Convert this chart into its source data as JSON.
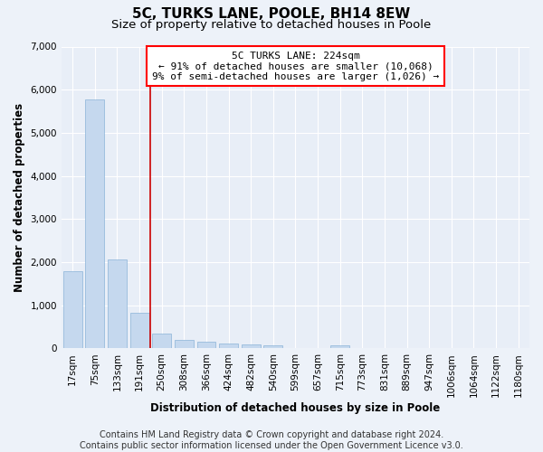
{
  "title": "5C, TURKS LANE, POOLE, BH14 8EW",
  "subtitle": "Size of property relative to detached houses in Poole",
  "xlabel": "Distribution of detached houses by size in Poole",
  "ylabel": "Number of detached properties",
  "bar_color": "#c5d8ee",
  "bar_edge_color": "#8ab4d8",
  "marker_line_index": 3,
  "marker_line_color": "#cc0000",
  "categories": [
    "17sqm",
    "75sqm",
    "133sqm",
    "191sqm",
    "250sqm",
    "308sqm",
    "366sqm",
    "424sqm",
    "482sqm",
    "540sqm",
    "599sqm",
    "657sqm",
    "715sqm",
    "773sqm",
    "831sqm",
    "889sqm",
    "947sqm",
    "1006sqm",
    "1064sqm",
    "1122sqm",
    "1180sqm"
  ],
  "values": [
    1780,
    5780,
    2060,
    820,
    340,
    200,
    150,
    120,
    100,
    60,
    0,
    0,
    60,
    0,
    0,
    0,
    0,
    0,
    0,
    0,
    0
  ],
  "ylim": [
    0,
    7000
  ],
  "yticks": [
    0,
    1000,
    2000,
    3000,
    4000,
    5000,
    6000,
    7000
  ],
  "annotation_box_text": "5C TURKS LANE: 224sqm\n← 91% of detached houses are smaller (10,068)\n9% of semi-detached houses are larger (1,026) →",
  "footnote": "Contains HM Land Registry data © Crown copyright and database right 2024.\nContains public sector information licensed under the Open Government Licence v3.0.",
  "background_color": "#edf2f9",
  "plot_bg_color": "#e8eef7",
  "grid_color": "#ffffff",
  "title_fontsize": 11,
  "subtitle_fontsize": 9.5,
  "axis_label_fontsize": 8.5,
  "tick_fontsize": 7.5,
  "annotation_fontsize": 8,
  "footnote_fontsize": 7
}
